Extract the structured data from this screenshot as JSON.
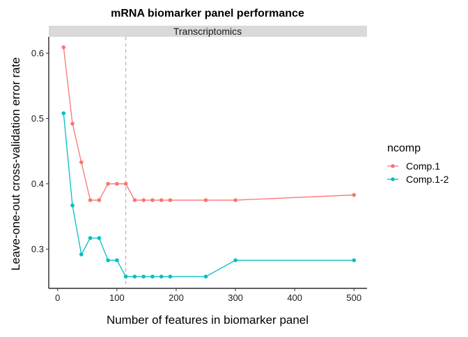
{
  "chart_data": {
    "type": "line",
    "title": "mRNA biomarker panel performance",
    "facet_label": "Transcriptomics",
    "xlabel": "Number of features in biomarker panel",
    "ylabel": "Leave-one-out cross-validation error rate",
    "xlim": [
      -15,
      522
    ],
    "ylim": [
      0.24,
      0.625
    ],
    "x_ticks": [
      0,
      100,
      200,
      300,
      400,
      500
    ],
    "y_ticks": [
      0.3,
      0.4,
      0.5,
      0.6
    ],
    "x_tick_labels": [
      "0",
      "100",
      "200",
      "300",
      "400",
      "500"
    ],
    "y_tick_labels": [
      "0.3",
      "0.4",
      "0.5",
      "0.6"
    ],
    "vline_x": 115,
    "grid": false,
    "legend_position": "right",
    "legend_title": "ncomp",
    "x": [
      10,
      25,
      40,
      55,
      70,
      85,
      100,
      115,
      130,
      145,
      160,
      175,
      190,
      250,
      300,
      500
    ],
    "series": [
      {
        "name": "Comp.1",
        "color": "#F8766D",
        "values": [
          0.609,
          0.492,
          0.433,
          0.375,
          0.375,
          0.4,
          0.4,
          0.4,
          0.375,
          0.375,
          0.375,
          0.375,
          0.375,
          0.375,
          0.375,
          0.383
        ]
      },
      {
        "name": "Comp.1-2",
        "color": "#00BFC4",
        "values": [
          0.508,
          0.367,
          0.292,
          0.317,
          0.317,
          0.283,
          0.283,
          0.258,
          0.258,
          0.258,
          0.258,
          0.258,
          0.258,
          0.258,
          0.283,
          0.283
        ]
      }
    ]
  }
}
